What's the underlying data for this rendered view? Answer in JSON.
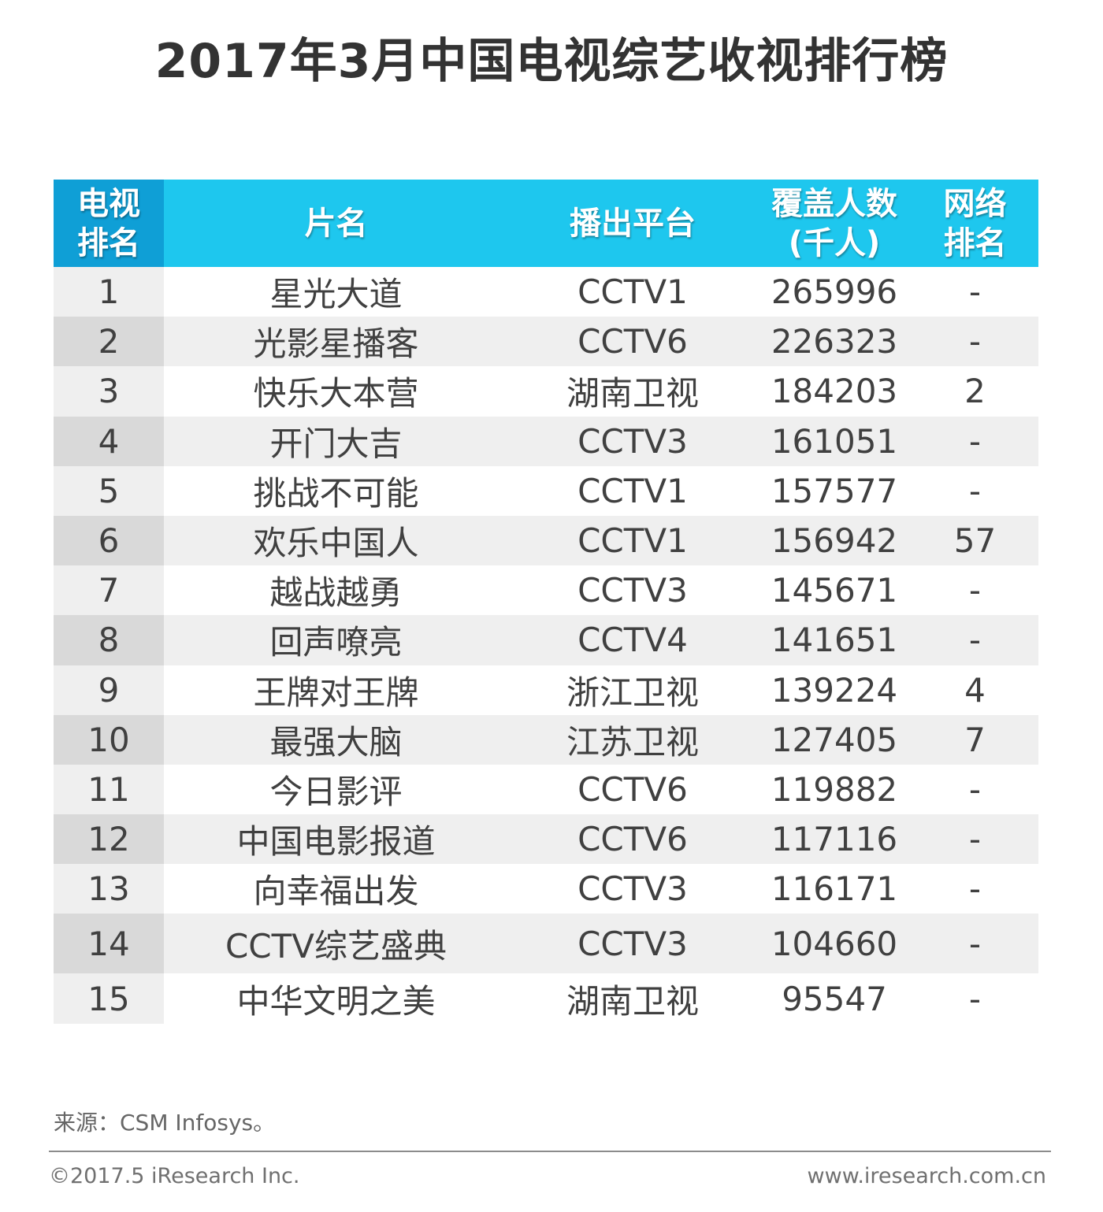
{
  "title": "2017年3月中国电视综艺收视排行榜",
  "table": {
    "headers": {
      "tv_rank_line1": "电视",
      "tv_rank_line2": "排名",
      "show": "片名",
      "platform": "播出平台",
      "audience_line1": "覆盖人数",
      "audience_line2": "(千人)",
      "net_rank_line1": "网络",
      "net_rank_line2": "排名"
    },
    "rows": [
      {
        "rank": "1",
        "show": "星光大道",
        "platform": "CCTV1",
        "audience": "265996",
        "net_rank": "-"
      },
      {
        "rank": "2",
        "show": "光影星播客",
        "platform": "CCTV6",
        "audience": "226323",
        "net_rank": "-"
      },
      {
        "rank": "3",
        "show": "快乐大本营",
        "platform": "湖南卫视",
        "audience": "184203",
        "net_rank": "2"
      },
      {
        "rank": "4",
        "show": "开门大吉",
        "platform": "CCTV3",
        "audience": "161051",
        "net_rank": "-"
      },
      {
        "rank": "5",
        "show": "挑战不可能",
        "platform": "CCTV1",
        "audience": "157577",
        "net_rank": "-"
      },
      {
        "rank": "6",
        "show": "欢乐中国人",
        "platform": "CCTV1",
        "audience": "156942",
        "net_rank": "57"
      },
      {
        "rank": "7",
        "show": "越战越勇",
        "platform": "CCTV3",
        "audience": "145671",
        "net_rank": "-"
      },
      {
        "rank": "8",
        "show": "回声嘹亮",
        "platform": "CCTV4",
        "audience": "141651",
        "net_rank": "-"
      },
      {
        "rank": "9",
        "show": "王牌对王牌",
        "platform": "浙江卫视",
        "audience": "139224",
        "net_rank": "4"
      },
      {
        "rank": "10",
        "show": "最强大脑",
        "platform": "江苏卫视",
        "audience": "127405",
        "net_rank": "7"
      },
      {
        "rank": "11",
        "show": "今日影评",
        "platform": "CCTV6",
        "audience": "119882",
        "net_rank": "-"
      },
      {
        "rank": "12",
        "show": "中国电影报道",
        "platform": "CCTV6",
        "audience": "117116",
        "net_rank": "-"
      },
      {
        "rank": "13",
        "show": "向幸福出发",
        "platform": "CCTV3",
        "audience": "116171",
        "net_rank": "-"
      },
      {
        "rank": "14",
        "show": "CCTV综艺盛典",
        "platform": "CCTV3",
        "audience": "104660",
        "net_rank": "-"
      },
      {
        "rank": "15",
        "show": "中华文明之美",
        "platform": "湖南卫视",
        "audience": "95547",
        "net_rank": "-"
      }
    ]
  },
  "source": "来源：CSM Infosys。",
  "copyright": "©2017.5 iResearch Inc.",
  "website": "www.iresearch.com.cn",
  "colors": {
    "header_bg": "#1ec7ee",
    "rank_header_bg": "#0f9fd6",
    "row_alt_bg": "#efefef",
    "rank_alt_bg": "#d9d9d9"
  }
}
